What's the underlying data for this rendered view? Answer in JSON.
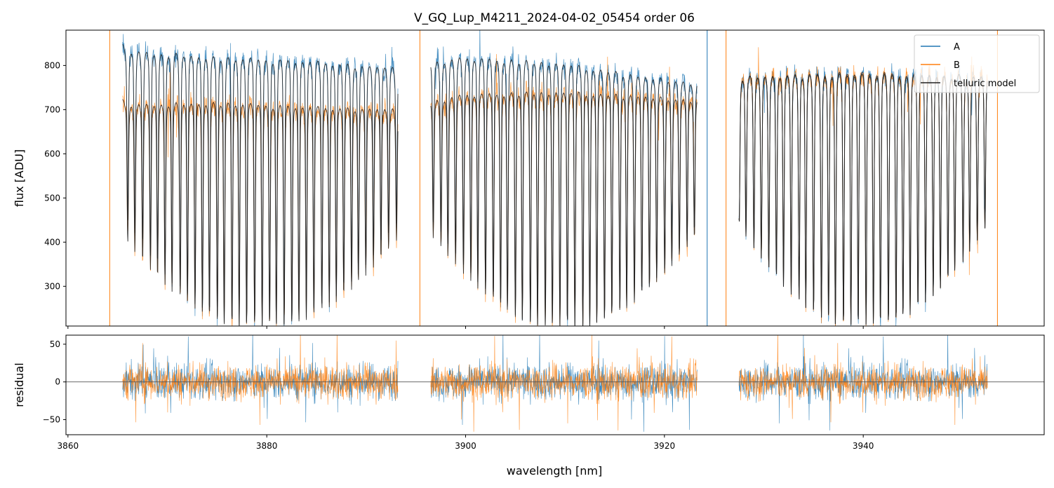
{
  "chart_data": [
    {
      "type": "line",
      "panel": "spectrum",
      "title": "V_GQ_Lup_M4211_2024-04-02_05454  order 06",
      "xlabel": "",
      "ylabel": "flux [ADU]",
      "xlim": [
        3859.8,
        3958.2
      ],
      "ylim": [
        210,
        880
      ],
      "x_ticks": [
        3860,
        3880,
        3900,
        3920,
        3940
      ],
      "y_ticks": [
        300,
        400,
        500,
        600,
        700,
        800
      ],
      "y_tick_labels": [
        "300",
        "400",
        "500",
        "600",
        "700",
        "800"
      ],
      "legend_position": "top-right",
      "series": [
        {
          "name": "A",
          "color": "#1f77b4",
          "continuum": [
            {
              "x": 3865.5,
              "y": 850
            },
            {
              "x": 3875,
              "y": 835
            },
            {
              "x": 3885,
              "y": 825
            },
            {
              "x": 3893,
              "y": 810
            },
            {
              "x": 3900,
              "y": 835
            },
            {
              "x": 3910,
              "y": 820
            },
            {
              "x": 3918,
              "y": 790
            },
            {
              "x": 3923,
              "y": 775
            },
            {
              "x": 3928,
              "y": 790
            },
            {
              "x": 3940,
              "y": 800
            },
            {
              "x": 3953,
              "y": 790
            }
          ]
        },
        {
          "name": "B",
          "color": "#ff7f0e",
          "continuum": [
            {
              "x": 3865.5,
              "y": 725
            },
            {
              "x": 3875,
              "y": 730
            },
            {
              "x": 3885,
              "y": 720
            },
            {
              "x": 3893,
              "y": 715
            },
            {
              "x": 3900,
              "y": 750
            },
            {
              "x": 3910,
              "y": 755
            },
            {
              "x": 3918,
              "y": 745
            },
            {
              "x": 3923,
              "y": 735
            },
            {
              "x": 3928,
              "y": 790
            },
            {
              "x": 3940,
              "y": 795
            },
            {
              "x": 3953,
              "y": 790
            }
          ]
        },
        {
          "name": "telluric model",
          "color": "#222222"
        }
      ],
      "segments": [
        [
          3865.5,
          3893.2
        ],
        [
          3896.5,
          3923.3
        ],
        [
          3927.5,
          3952.5
        ]
      ],
      "absorption_lines": {
        "approx_spacing_nm": 0.75,
        "min_depth_y": 215,
        "shallow_depth_y": 520
      }
    },
    {
      "type": "line",
      "panel": "residual",
      "title": "",
      "xlabel": "wavelength [nm]",
      "ylabel": "residual",
      "xlim": [
        3859.8,
        3958.2
      ],
      "ylim": [
        -70,
        62
      ],
      "x_ticks": [
        3860,
        3880,
        3900,
        3920,
        3940
      ],
      "x_tick_labels": [
        "3860",
        "3880",
        "3900",
        "3920",
        "3940"
      ],
      "y_ticks": [
        -50,
        0,
        50
      ],
      "y_tick_labels": [
        "−50",
        "0",
        "50"
      ],
      "zero_line": true,
      "series": [
        {
          "name": "A",
          "color": "#1f77b4",
          "noise_amplitude": 30
        },
        {
          "name": "B",
          "color": "#ff7f0e",
          "noise_amplitude": 30
        }
      ],
      "segments": [
        [
          3865.5,
          3893.2
        ],
        [
          3896.5,
          3923.3
        ],
        [
          3927.5,
          3952.5
        ]
      ]
    }
  ]
}
